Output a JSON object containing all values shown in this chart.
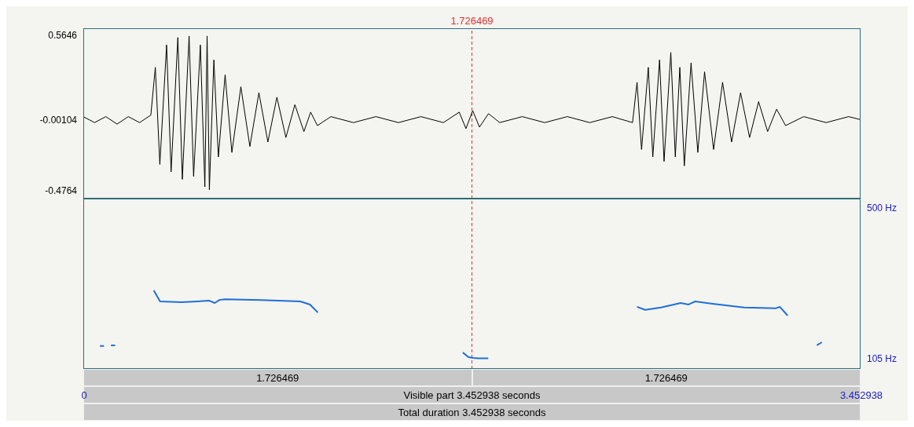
{
  "chart_data": [
    {
      "type": "line",
      "xlim": [
        0,
        3.452938
      ],
      "ylim": [
        -0.529,
        0.612
      ],
      "yticks": [
        0.5646,
        -0.00104,
        -0.4764
      ],
      "tick_labels": "y",
      "ref_lines": [
        {
          "axis": "x",
          "value": 1.726469,
          "label": "1.726469",
          "color": "#e03030",
          "line_style": "dashed"
        }
      ],
      "series": [
        {
          "color": "#000000",
          "x": [
            0.0,
            0.05,
            0.1,
            0.15,
            0.2,
            0.25,
            0.3,
            0.32,
            0.34,
            0.37,
            0.39,
            0.42,
            0.44,
            0.47,
            0.49,
            0.52,
            0.54,
            0.55,
            0.56,
            0.58,
            0.6,
            0.63,
            0.66,
            0.7,
            0.74,
            0.78,
            0.82,
            0.86,
            0.9,
            0.94,
            0.98,
            1.01,
            1.04,
            1.1,
            1.2,
            1.3,
            1.4,
            1.5,
            1.6,
            1.67,
            1.7,
            1.73,
            1.76,
            1.8,
            1.85,
            1.95,
            2.05,
            2.15,
            2.25,
            2.35,
            2.44,
            2.46,
            2.48,
            2.51,
            2.53,
            2.56,
            2.58,
            2.61,
            2.63,
            2.65,
            2.67,
            2.7,
            2.73,
            2.76,
            2.8,
            2.84,
            2.88,
            2.92,
            2.96,
            3.0,
            3.04,
            3.08,
            3.12,
            3.2,
            3.3,
            3.4,
            3.452938
          ],
          "values": [
            0.02,
            -0.02,
            0.02,
            -0.03,
            0.02,
            -0.02,
            0.03,
            0.35,
            -0.3,
            0.5,
            -0.35,
            0.55,
            -0.4,
            0.56,
            -0.38,
            0.5,
            -0.45,
            0.56,
            -0.47,
            0.4,
            -0.25,
            0.3,
            -0.22,
            0.22,
            -0.18,
            0.18,
            -0.15,
            0.15,
            -0.12,
            0.1,
            -0.08,
            0.05,
            -0.04,
            0.02,
            -0.02,
            0.02,
            -0.02,
            0.02,
            -0.02,
            0.05,
            -0.06,
            0.06,
            -0.05,
            0.04,
            -0.02,
            0.02,
            -0.02,
            0.02,
            -0.02,
            0.02,
            -0.02,
            0.25,
            -0.2,
            0.35,
            -0.25,
            0.4,
            -0.28,
            0.45,
            -0.25,
            0.35,
            -0.31,
            0.38,
            -0.22,
            0.32,
            -0.2,
            0.25,
            -0.15,
            0.18,
            -0.12,
            0.12,
            -0.08,
            0.07,
            -0.04,
            0.02,
            -0.02,
            0.02,
            0.0
          ]
        }
      ]
    },
    {
      "type": "line",
      "xlim": [
        0,
        3.452938
      ],
      "xticks": [
        0,
        3.452938
      ],
      "y2lim": [
        78,
        525
      ],
      "y2ticks": [
        {
          "value": 500,
          "label": "500 Hz"
        },
        {
          "value": 105,
          "label": "105 Hz"
        }
      ],
      "ref_lines": [
        {
          "axis": "x",
          "value": 1.726469,
          "color": "#e03030",
          "line_style": "dashed"
        }
      ],
      "annotations": [
        "1.726469",
        "1.726469",
        "Visible part 3.452938 seconds",
        "Total duration 3.452938 seconds"
      ],
      "series": [
        {
          "color": "#1f6fd6",
          "axis": "y2",
          "x": [
            0.074,
            0.092,
            0.11,
            0.123,
            0.141,
            0.2,
            0.313,
            0.341,
            0.436,
            0.56,
            0.584,
            0.605,
            0.63,
            0.788,
            0.964,
            1.007,
            1.042,
            1.3,
            1.686,
            1.711,
            1.732,
            1.756,
            1.799,
            2.1,
            2.46,
            2.496,
            2.566,
            2.654,
            2.689,
            2.717,
            2.795,
            2.936,
            3.076,
            3.094,
            3.129,
            3.2,
            3.259,
            3.281
          ],
          "values": [
            138,
            138,
            null,
            140,
            140,
            null,
            284,
            255,
            253,
            257,
            251,
            259,
            261,
            259,
            255,
            247,
            226,
            null,
            121,
            109,
            107,
            106,
            106,
            null,
            241,
            233,
            239,
            251,
            247,
            255,
            249,
            239,
            237,
            241,
            218,
            null,
            140,
            148
          ]
        }
      ]
    }
  ]
}
